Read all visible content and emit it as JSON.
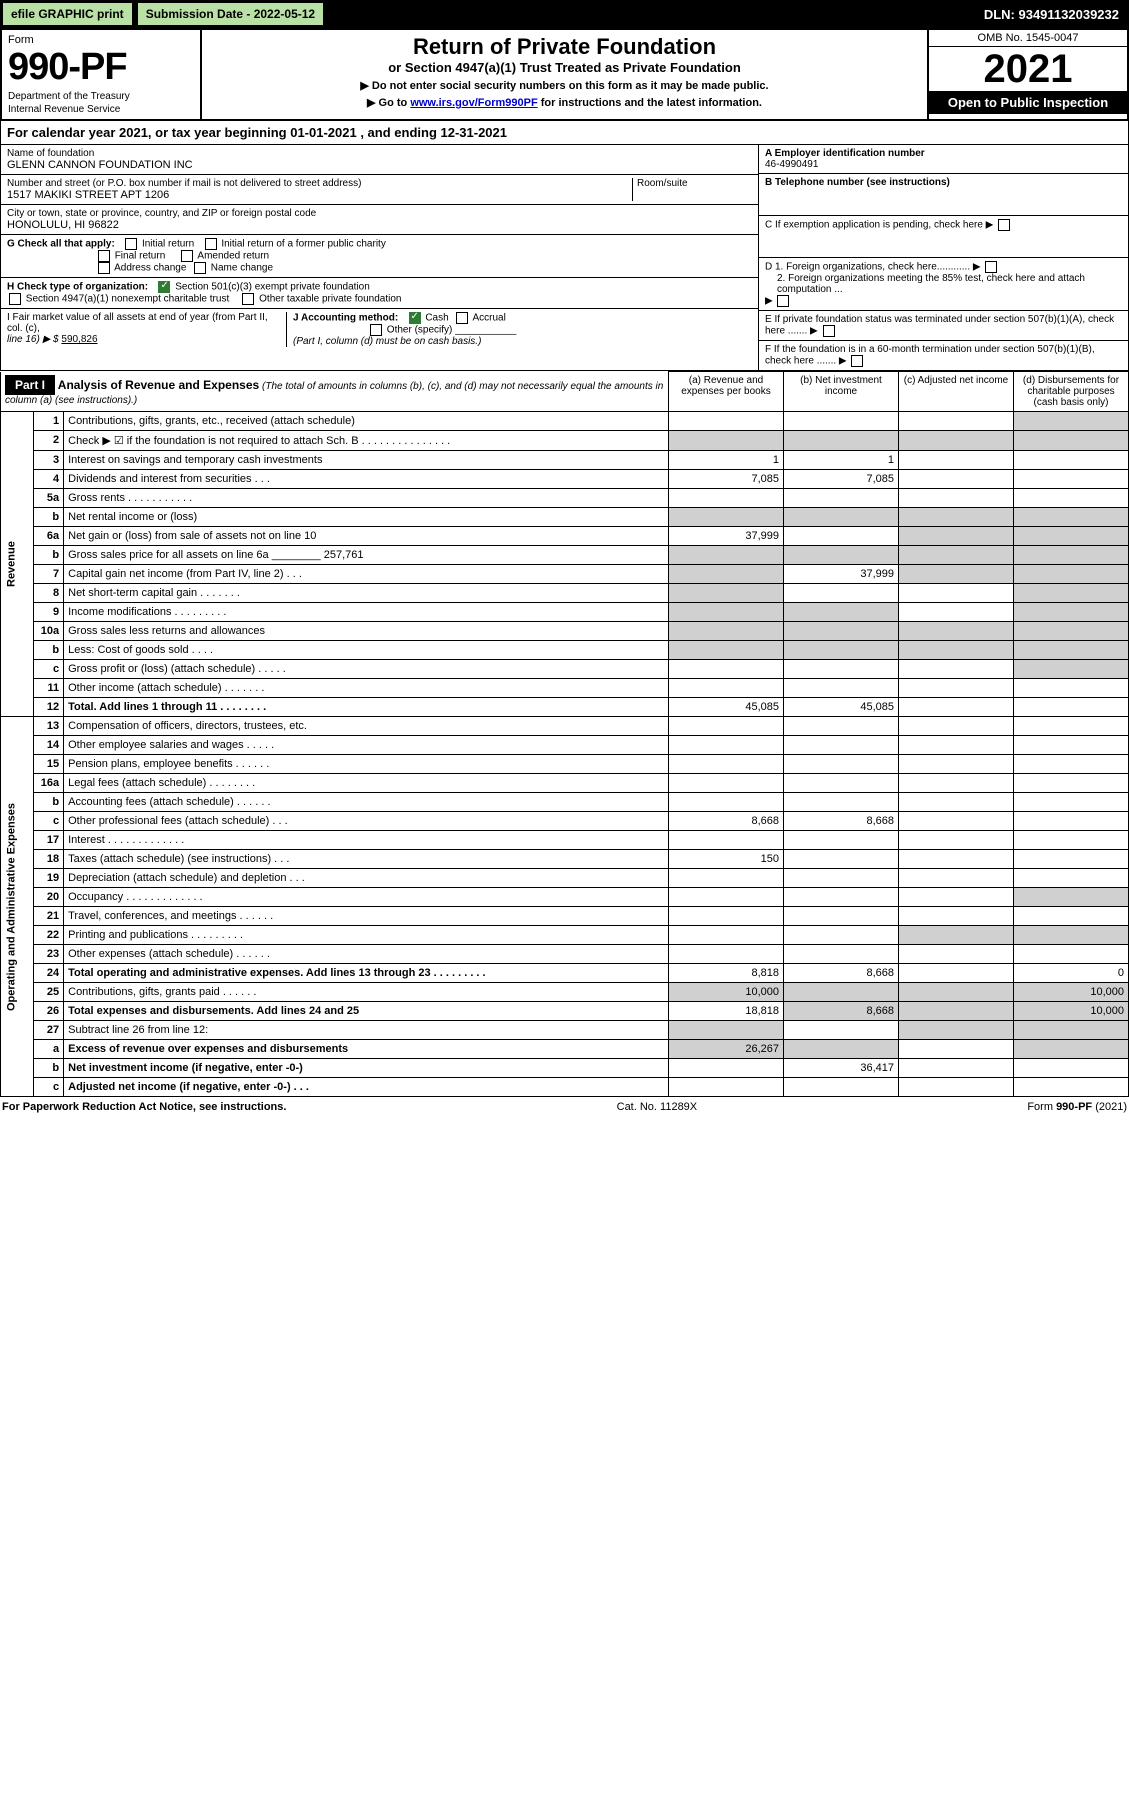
{
  "top": {
    "efile": "efile GRAPHIC print",
    "submission": "Submission Date - 2022-05-12",
    "dln": "DLN: 93491132039232"
  },
  "header": {
    "form_label": "Form",
    "form_number": "990-PF",
    "dept1": "Department of the Treasury",
    "dept2": "Internal Revenue Service",
    "title": "Return of Private Foundation",
    "subtitle": "or Section 4947(a)(1) Trust Treated as Private Foundation",
    "note1": "▶ Do not enter social security numbers on this form as it may be made public.",
    "note2_pre": "▶ Go to ",
    "note2_link": "www.irs.gov/Form990PF",
    "note2_post": " for instructions and the latest information.",
    "omb": "OMB No. 1545-0047",
    "year": "2021",
    "open": "Open to Public Inspection"
  },
  "calyear": "For calendar year 2021, or tax year beginning 01-01-2021                         , and ending 12-31-2021",
  "info": {
    "name_label": "Name of foundation",
    "name": "GLENN CANNON FOUNDATION INC",
    "addr_label": "Number and street (or P.O. box number if mail is not delivered to street address)",
    "addr": "1517 MAKIKI STREET APT 1206",
    "room_label": "Room/suite",
    "city_label": "City or town, state or province, country, and ZIP or foreign postal code",
    "city": "HONOLULU, HI  96822",
    "ein_label": "A Employer identification number",
    "ein": "46-4990491",
    "phone_label": "B Telephone number (see instructions)",
    "c_label": "C If exemption application is pending, check here",
    "d1": "D 1. Foreign organizations, check here............",
    "d2": "2. Foreign organizations meeting the 85% test, check here and attach computation ...",
    "e_label": "E  If private foundation status was terminated under section 507(b)(1)(A), check here .......",
    "f_label": "F  If the foundation is in a 60-month termination under section 507(b)(1)(B), check here .......",
    "g_label": "G Check all that apply:",
    "g_initial": "Initial return",
    "g_initial_former": "Initial return of a former public charity",
    "g_final": "Final return",
    "g_amended": "Amended return",
    "g_addr": "Address change",
    "g_name": "Name change",
    "h_label": "H Check type of organization:",
    "h_501c3": "Section 501(c)(3) exempt private foundation",
    "h_4947": "Section 4947(a)(1) nonexempt charitable trust",
    "h_other": "Other taxable private foundation",
    "i_label": "I Fair market value of all assets at end of year (from Part II, col. (c),",
    "i_line": "line 16) ▶ $",
    "i_val": "590,826",
    "j_label": "J Accounting method:",
    "j_cash": "Cash",
    "j_accrual": "Accrual",
    "j_other": "Other (specify)",
    "j_note": "(Part I, column (d) must be on cash basis.)"
  },
  "part1": {
    "head": "Part I",
    "title": "Analysis of Revenue and Expenses",
    "note": "(The total of amounts in columns (b), (c), and (d) may not necessarily equal the amounts in column (a) (see instructions).)",
    "col_a": "(a)   Revenue and expenses per books",
    "col_b": "(b)   Net investment income",
    "col_c": "(c)   Adjusted net income",
    "col_d": "(d)   Disbursements for charitable purposes (cash basis only)",
    "revenue_label": "Revenue",
    "expenses_label": "Operating and Administrative Expenses",
    "rows": [
      {
        "n": "1",
        "d": "Contributions, gifts, grants, etc., received (attach schedule)"
      },
      {
        "n": "2",
        "d": "Check ▶ ☑ if the foundation is not required to attach Sch. B     .   .   .   .   .   .   .   .   .   .   .   .   .   .   ."
      },
      {
        "n": "3",
        "d": "Interest on savings and temporary cash investments",
        "a": "1",
        "b": "1"
      },
      {
        "n": "4",
        "d": "Dividends and interest from securities    .    .    .",
        "a": "7,085",
        "b": "7,085"
      },
      {
        "n": "5a",
        "d": "Gross rents    .    .    .    .    .    .    .    .    .    .    ."
      },
      {
        "n": "b",
        "d": "Net rental income or (loss)"
      },
      {
        "n": "6a",
        "d": "Net gain or (loss) from sale of assets not on line 10",
        "a": "37,999"
      },
      {
        "n": "b",
        "d": "Gross sales price for all assets on line 6a ________ 257,761"
      },
      {
        "n": "7",
        "d": "Capital gain net income (from Part IV, line 2)    .    .    .",
        "b": "37,999"
      },
      {
        "n": "8",
        "d": "Net short-term capital gain    .    .    .    .    .    .    ."
      },
      {
        "n": "9",
        "d": "Income modifications  .    .    .    .    .    .    .    .    ."
      },
      {
        "n": "10a",
        "d": "Gross sales less returns and allowances"
      },
      {
        "n": "b",
        "d": "Less: Cost of goods sold    .    .    .    ."
      },
      {
        "n": "c",
        "d": "Gross profit or (loss) (attach schedule)    .    .    .    .    ."
      },
      {
        "n": "11",
        "d": "Other income (attach schedule)    .    .    .    .    .    .    ."
      },
      {
        "n": "12",
        "d": "Total. Add lines 1 through 11    .    .    .    .    .    .    .    .",
        "a": "45,085",
        "b": "45,085",
        "bold": true
      },
      {
        "n": "13",
        "d": "Compensation of officers, directors, trustees, etc."
      },
      {
        "n": "14",
        "d": "Other employee salaries and wages    .    .    .    .    ."
      },
      {
        "n": "15",
        "d": "Pension plans, employee benefits  .    .    .    .    .    ."
      },
      {
        "n": "16a",
        "d": "Legal fees (attach schedule)  .    .    .    .    .    .    .    ."
      },
      {
        "n": "b",
        "d": "Accounting fees (attach schedule)  .    .    .    .    .    ."
      },
      {
        "n": "c",
        "d": "Other professional fees (attach schedule)    .    .    .",
        "a": "8,668",
        "b": "8,668"
      },
      {
        "n": "17",
        "d": "Interest  .    .    .    .    .    .    .    .    .    .    .    .    ."
      },
      {
        "n": "18",
        "d": "Taxes (attach schedule) (see instructions)    .    .    .",
        "a": "150"
      },
      {
        "n": "19",
        "d": "Depreciation (attach schedule) and depletion    .    .    ."
      },
      {
        "n": "20",
        "d": "Occupancy  .    .    .    .    .    .    .    .    .    .    .    .    ."
      },
      {
        "n": "21",
        "d": "Travel, conferences, and meetings  .    .    .    .    .    ."
      },
      {
        "n": "22",
        "d": "Printing and publications  .    .    .    .    .    .    .    .    ."
      },
      {
        "n": "23",
        "d": "Other expenses (attach schedule)  .    .    .    .    .    ."
      },
      {
        "n": "24",
        "d": "Total operating and administrative expenses. Add lines 13 through 23    .    .    .    .    .    .    .    .    .",
        "a": "8,818",
        "b": "8,668",
        "dd": "0",
        "bold": true
      },
      {
        "n": "25",
        "d": "Contributions, gifts, grants paid    .    .    .    .    .    .",
        "a": "10,000",
        "dd": "10,000"
      },
      {
        "n": "26",
        "d": "Total expenses and disbursements. Add lines 24 and 25",
        "a": "18,818",
        "b": "8,668",
        "dd": "10,000",
        "bold": true
      },
      {
        "n": "27",
        "d": "Subtract line 26 from line 12:"
      },
      {
        "n": "a",
        "d": "Excess of revenue over expenses and disbursements",
        "a": "26,267",
        "bold": true
      },
      {
        "n": "b",
        "d": "Net investment income (if negative, enter -0-)",
        "b": "36,417",
        "bold": true
      },
      {
        "n": "c",
        "d": "Adjusted net income (if negative, enter -0-)    .    .    .",
        "bold": true
      }
    ]
  },
  "footer": {
    "left": "For Paperwork Reduction Act Notice, see instructions.",
    "center": "Cat. No. 11289X",
    "right": "Form 990-PF (2021)"
  }
}
